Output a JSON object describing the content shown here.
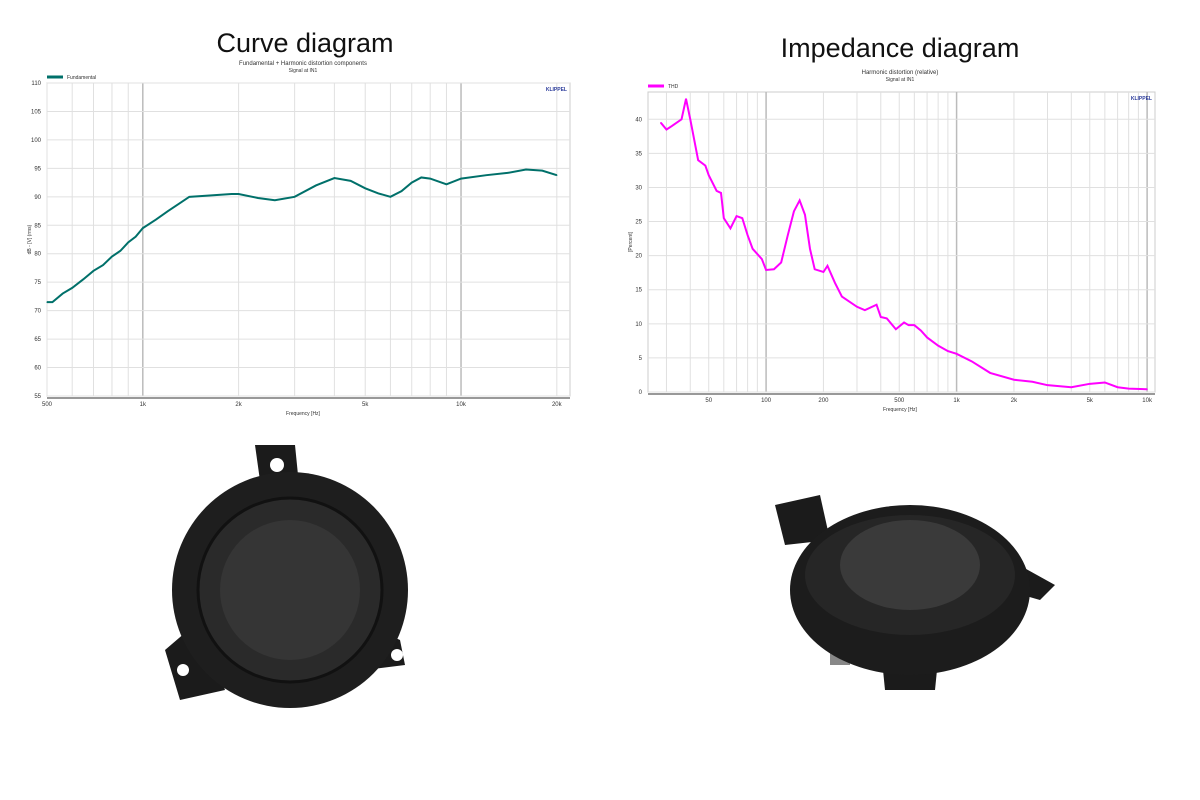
{
  "headings": {
    "left": "Curve diagram",
    "right": "Impedance diagram"
  },
  "chart_data": [
    {
      "type": "line",
      "title": "Fundamental + Harmonic distortion components",
      "subtitle": "Signal at IN1",
      "brand": "KLIPPEL",
      "xlabel": "Frequency [Hz]",
      "ylabel": "dB - [V] (rms)",
      "xscale": "log",
      "xlim": [
        500,
        22000
      ],
      "ylim": [
        55,
        110
      ],
      "yticks": [
        55,
        60,
        65,
        70,
        75,
        80,
        85,
        90,
        95,
        100,
        105,
        110
      ],
      "xticks": [
        {
          "v": 500,
          "l": "500"
        },
        {
          "v": 1000,
          "l": "1k"
        },
        {
          "v": 2000,
          "l": "2k"
        },
        {
          "v": 5000,
          "l": "5k"
        },
        {
          "v": 10000,
          "l": "10k"
        },
        {
          "v": 20000,
          "l": "20k"
        }
      ],
      "grid": true,
      "legend": "top-left",
      "color": "#00706a",
      "series": [
        {
          "name": "Fundamental",
          "x": [
            500,
            520,
            560,
            600,
            650,
            700,
            750,
            800,
            850,
            900,
            950,
            1000,
            1100,
            1200,
            1300,
            1400,
            1600,
            1900,
            2000,
            2300,
            2600,
            3000,
            3500,
            4000,
            4500,
            5000,
            5500,
            6000,
            6500,
            7000,
            7500,
            8000,
            9000,
            10000,
            12000,
            14000,
            16000,
            18000,
            20000
          ],
          "y": [
            71.5,
            71.5,
            73,
            74,
            75.5,
            77,
            78,
            79.5,
            80.5,
            82,
            83,
            84.5,
            86,
            87.5,
            88.8,
            90,
            90.2,
            90.5,
            90.5,
            89.8,
            89.4,
            90,
            92,
            93.3,
            92.8,
            91.5,
            90.6,
            90,
            91,
            92.5,
            93.4,
            93.2,
            92.2,
            93.2,
            93.8,
            94.2,
            94.8,
            94.6,
            93.8
          ]
        }
      ]
    },
    {
      "type": "line",
      "title": "Harmonic distortion (relative)",
      "subtitle": "Signal at IN1",
      "brand": "KLIPPEL",
      "xlabel": "Frequency [Hz]",
      "ylabel": "[Percent]",
      "xscale": "log",
      "xlim": [
        24,
        11000
      ],
      "ylim": [
        0,
        44
      ],
      "yticks": [
        0,
        5,
        10,
        15,
        20,
        25,
        30,
        35,
        40
      ],
      "xticks": [
        {
          "v": 50,
          "l": "50"
        },
        {
          "v": 100,
          "l": "100"
        },
        {
          "v": 200,
          "l": "200"
        },
        {
          "v": 500,
          "l": "500"
        },
        {
          "v": 1000,
          "l": "1k"
        },
        {
          "v": 2000,
          "l": "2k"
        },
        {
          "v": 5000,
          "l": "5k"
        },
        {
          "v": 10000,
          "l": "10k"
        }
      ],
      "grid": true,
      "legend": "top-left",
      "color": "#ff00ff",
      "series": [
        {
          "name": "THD",
          "x": [
            28,
            30,
            32,
            36,
            38,
            40,
            44,
            48,
            50,
            55,
            58,
            60,
            65,
            70,
            75,
            80,
            85,
            95,
            100,
            110,
            120,
            130,
            140,
            150,
            160,
            170,
            180,
            200,
            210,
            230,
            250,
            300,
            330,
            380,
            400,
            430,
            480,
            530,
            560,
            600,
            650,
            700,
            800,
            900,
            1000,
            1200,
            1500,
            2000,
            2500,
            3000,
            4000,
            5000,
            6000,
            7000,
            8000,
            10000
          ],
          "y": [
            39.5,
            38.5,
            39,
            40,
            43,
            40,
            34,
            33.2,
            31.8,
            29.5,
            29.2,
            25.5,
            24,
            25.8,
            25.5,
            23,
            21,
            19.5,
            17.9,
            18,
            19,
            23,
            26.5,
            28.1,
            26,
            21,
            18,
            17.6,
            18.5,
            16,
            14,
            12.5,
            12,
            12.8,
            11,
            10.8,
            9.2,
            10.2,
            9.8,
            9.8,
            9,
            8,
            6.8,
            6,
            5.6,
            4.5,
            2.8,
            1.8,
            1.5,
            1,
            0.7,
            1.2,
            1.4,
            0.7,
            0.5,
            0.4
          ]
        }
      ]
    }
  ]
}
